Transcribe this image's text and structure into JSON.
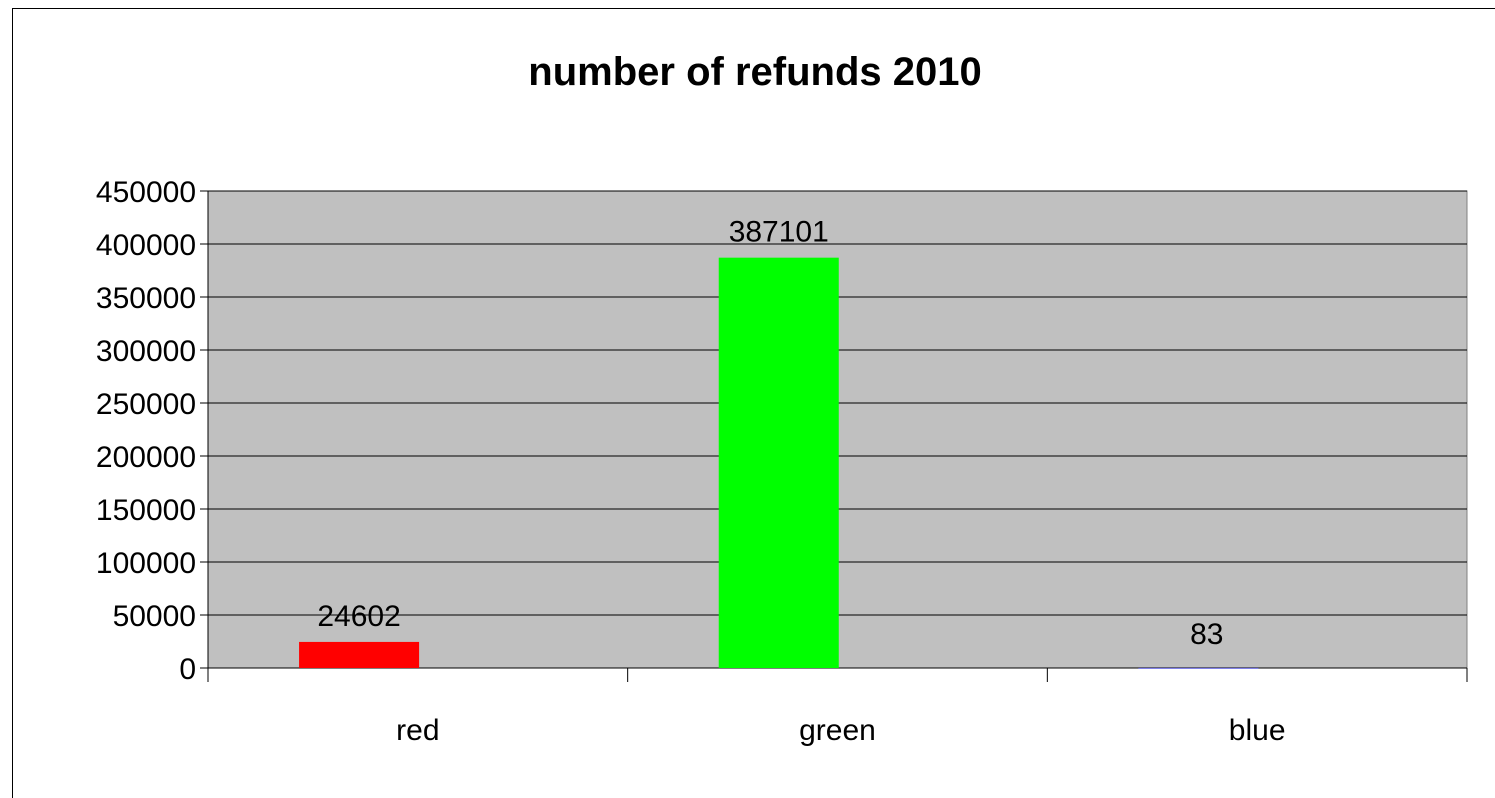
{
  "chart_data": {
    "type": "bar",
    "title": "number of refunds 2010",
    "xlabel": "",
    "ylabel": "",
    "categories": [
      "red",
      "green",
      "blue"
    ],
    "values": [
      24602,
      387101,
      83
    ],
    "data_labels": [
      "24602",
      "387101",
      "83"
    ],
    "colors": [
      "#ff0000",
      "#00ff00",
      "#0000ff"
    ],
    "ylim": [
      0,
      450000
    ],
    "yticks": [
      0,
      50000,
      100000,
      150000,
      200000,
      250000,
      300000,
      350000,
      400000,
      450000
    ],
    "ytick_labels": [
      "0",
      "50000",
      "100000",
      "150000",
      "200000",
      "250000",
      "300000",
      "350000",
      "400000",
      "450000"
    ],
    "plot_background": "#c0c0c0",
    "grid": true,
    "legend": "none"
  }
}
